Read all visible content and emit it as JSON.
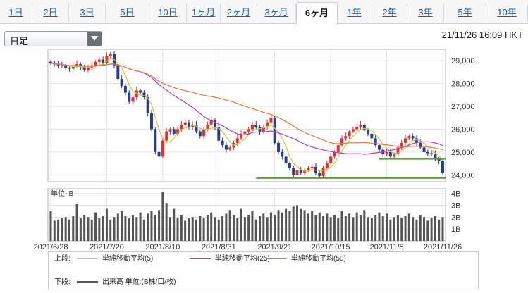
{
  "tabs": [
    {
      "label": "1日",
      "active": false
    },
    {
      "label": "2日",
      "active": false
    },
    {
      "label": "3日",
      "active": false
    },
    {
      "label": "5日",
      "active": false
    },
    {
      "label": "10日",
      "active": false
    },
    {
      "label": "1ヶ月",
      "active": false
    },
    {
      "label": "2ヶ月",
      "active": false
    },
    {
      "label": "3ヶ月",
      "active": false
    },
    {
      "label": "6ヶ月",
      "active": true
    },
    {
      "label": "1年",
      "active": false
    },
    {
      "label": "2年",
      "active": false
    },
    {
      "label": "3年",
      "active": false
    },
    {
      "label": "5年",
      "active": false
    },
    {
      "label": "10年",
      "active": false
    }
  ],
  "select": {
    "value": "日足",
    "icon": "chevron-down-icon"
  },
  "timestamp": "21/11/26 16:09 HKT",
  "colors": {
    "up": "#e03030",
    "down": "#2a3c8c",
    "ma5": "#c9c930",
    "ma25": "#a53fd0",
    "ma50": "#e87740",
    "support": "#5f9e2f",
    "volume": "#555555",
    "grid": "#e3e3e3"
  },
  "chart_data": [
    {
      "type": "candlestick",
      "x_ticks": [
        "2021/6/28",
        "2021/7/20",
        "2021/8/10",
        "2021/8/31",
        "2021/9/21",
        "2021/10/15",
        "2021/11/5",
        "2021/11/26"
      ],
      "y_ticks": [
        "29,000",
        "28,000",
        "27,000",
        "26,000",
        "25,000",
        "24,000"
      ],
      "ylim": [
        23700,
        29500
      ],
      "support_levels": [
        24700,
        23860
      ],
      "close": [
        28900,
        28850,
        28800,
        28780,
        28700,
        28650,
        28800,
        28850,
        28720,
        28600,
        28700,
        28800,
        28950,
        29050,
        28900,
        29200,
        29300,
        28800,
        28200,
        27900,
        27600,
        27200,
        27400,
        27700,
        27600,
        27400,
        26700,
        26000,
        25000,
        24800,
        25500,
        25900,
        26000,
        25800,
        26000,
        26200,
        26300,
        26100,
        26200,
        25900,
        25700,
        26000,
        26200,
        26400,
        26100,
        25500,
        25300,
        25100,
        25200,
        25400,
        25600,
        25800,
        25900,
        26000,
        26200,
        26100,
        25900,
        26100,
        26300,
        26500,
        25400,
        25000,
        24800,
        24500,
        24300,
        24000,
        24200,
        24100,
        24200,
        24300,
        24350,
        24100,
        23950,
        24300,
        24500,
        24800,
        25000,
        25300,
        25600,
        25700,
        25900,
        26000,
        26100,
        26200,
        25950,
        25800,
        25600,
        25300,
        25100,
        24900,
        25000,
        24800,
        24900,
        25200,
        25400,
        25600,
        25700,
        25600,
        25400,
        25200,
        25000,
        24950,
        24900,
        24700,
        24600,
        24100
      ],
      "ma5_label": "単純移動平均(5)",
      "ma25_label": "単純移動平均(25)",
      "ma50_label": "単純移動平均(50)"
    },
    {
      "type": "bar",
      "unit_label": "単位: B",
      "y_ticks": [
        "4B",
        "3B",
        "2B",
        "1B"
      ],
      "ylim": [
        0,
        4.4
      ],
      "values": [
        2.5,
        1.7,
        1.8,
        1.9,
        2.0,
        1.8,
        2.1,
        3.1,
        1.9,
        2.2,
        2.0,
        1.8,
        2.4,
        1.9,
        2.1,
        2.7,
        1.8,
        2.0,
        2.3,
        2.5,
        2.1,
        1.9,
        2.2,
        2.0,
        2.4,
        1.8,
        2.3,
        2.5,
        2.2,
        2.6,
        4.1,
        3.2,
        2.0,
        2.7,
        1.9,
        2.2,
        1.7,
        1.9,
        2.0,
        1.8,
        2.1,
        1.9,
        2.2,
        2.4,
        2.0,
        1.8,
        2.1,
        2.3,
        2.6,
        2.2,
        1.9,
        2.7,
        2.0,
        2.2,
        2.5,
        1.8,
        2.1,
        2.3,
        2.0,
        2.4,
        2.2,
        2.6,
        2.4,
        2.7,
        2.5,
        2.9,
        3.0,
        2.7,
        2.6,
        2.3,
        2.5,
        2.2,
        2.4,
        2.1,
        2.3,
        2.0,
        2.2,
        1.9,
        2.5,
        2.1,
        2.3,
        2.0,
        2.4,
        2.2,
        2.6,
        2.0,
        1.9,
        2.2,
        2.4,
        2.1,
        2.3,
        1.8,
        2.0,
        2.2,
        1.9,
        2.1,
        2.3,
        2.0,
        1.8,
        2.2,
        2.0,
        1.7,
        1.9,
        2.1,
        1.8,
        2.0
      ]
    }
  ],
  "legend": {
    "upper_caption": "上段:",
    "lower_caption": "下段:",
    "items": [
      {
        "label": "単純移動平均(5)",
        "color": "#c9c930"
      },
      {
        "label": "単純移動平均(25)",
        "color": "#a53fd0"
      },
      {
        "label": "単純移動平均(50)",
        "color": "#e87740"
      }
    ],
    "volume_label": "出来高 単位:(B株/口/枚)"
  }
}
